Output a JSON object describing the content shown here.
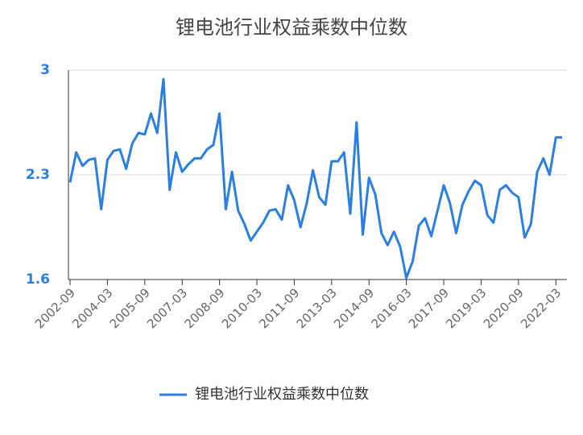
{
  "chart_data": {
    "type": "line",
    "title": "锂电池行业权益乘数中位数",
    "categories": [
      "2002-09",
      null,
      null,
      null,
      null,
      null,
      "2004-03",
      null,
      null,
      null,
      null,
      null,
      "2005-09",
      null,
      null,
      null,
      null,
      null,
      "2007-03",
      null,
      null,
      null,
      null,
      null,
      "2008-09",
      null,
      null,
      null,
      null,
      null,
      "2010-03",
      null,
      null,
      null,
      null,
      null,
      "2011-09",
      null,
      null,
      null,
      null,
      null,
      "2013-03",
      null,
      null,
      null,
      null,
      null,
      "2014-09",
      null,
      null,
      null,
      null,
      null,
      "2016-03",
      null,
      null,
      null,
      null,
      null,
      "2017-09",
      null,
      null,
      null,
      null,
      null,
      "2019-03",
      null,
      null,
      null,
      null,
      null,
      "2020-09",
      null,
      null,
      null,
      null,
      null,
      "2022-03",
      null
    ],
    "series": [
      {
        "name": "锂电池行业权益乘数中位数",
        "color": "#2b7fe0",
        "values": [
          2.25,
          2.45,
          2.36,
          2.4,
          2.41,
          2.07,
          2.4,
          2.46,
          2.47,
          2.34,
          2.51,
          2.58,
          2.57,
          2.71,
          2.58,
          2.94,
          2.2,
          2.45,
          2.32,
          2.37,
          2.41,
          2.41,
          2.47,
          2.5,
          2.71,
          2.07,
          2.32,
          2.06,
          1.97,
          1.86,
          1.92,
          1.98,
          2.06,
          2.07,
          2.0,
          2.23,
          2.13,
          1.95,
          2.11,
          2.33,
          2.15,
          2.1,
          2.39,
          2.39,
          2.45,
          2.04,
          2.65,
          1.9,
          2.28,
          2.17,
          1.91,
          1.83,
          1.92,
          1.82,
          1.61,
          1.72,
          1.96,
          2.01,
          1.89,
          2.06,
          2.23,
          2.11,
          1.91,
          2.1,
          2.19,
          2.26,
          2.23,
          2.03,
          1.98,
          2.2,
          2.23,
          2.18,
          2.15,
          1.88,
          1.97,
          2.32,
          2.41,
          2.3,
          2.55,
          2.55
        ]
      }
    ],
    "ylim": [
      1.6,
      3
    ],
    "yticks": [
      1.6,
      2.3,
      3
    ],
    "grid": true,
    "tick_color": "#2b7fe0",
    "legend": "bottom"
  }
}
